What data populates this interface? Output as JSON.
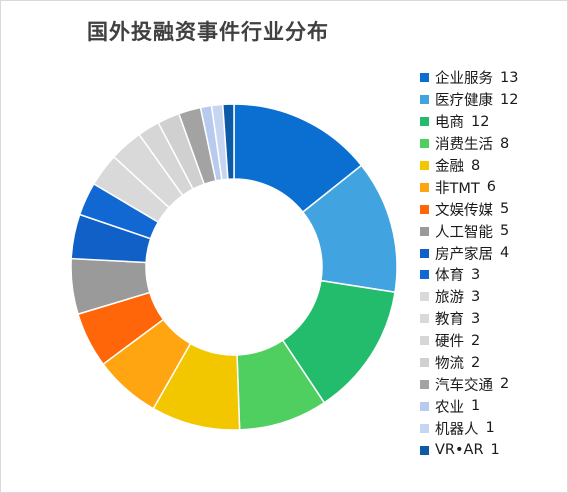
{
  "chart_data": {
    "type": "donut",
    "title": "国外投融资事件行业分布",
    "legend_position": "right",
    "categories": [
      "企业服务",
      "医疗健康",
      "电商",
      "消费生活",
      "金融",
      "非TMT",
      "文娱传媒",
      "人工智能",
      "房产家居",
      "体育",
      "旅游",
      "教育",
      "硬件",
      "物流",
      "汽车交通",
      "农业",
      "机器人",
      "VR•AR"
    ],
    "values": [
      13,
      12,
      12,
      8,
      8,
      6,
      5,
      5,
      4,
      3,
      3,
      3,
      2,
      2,
      2,
      1,
      1,
      1
    ],
    "colors": [
      "#0a6fd1",
      "#41a3df",
      "#22bc6c",
      "#4fcf5f",
      "#f2c700",
      "#ffa512",
      "#ff6609",
      "#9a9a9a",
      "#1060c8",
      "#1268d2",
      "#d9d9d9",
      "#d9d9d9",
      "#d6d6d6",
      "#d0d0d0",
      "#a3a3a3",
      "#b8cbee",
      "#c6d5f2",
      "#0d5aa7"
    ]
  }
}
